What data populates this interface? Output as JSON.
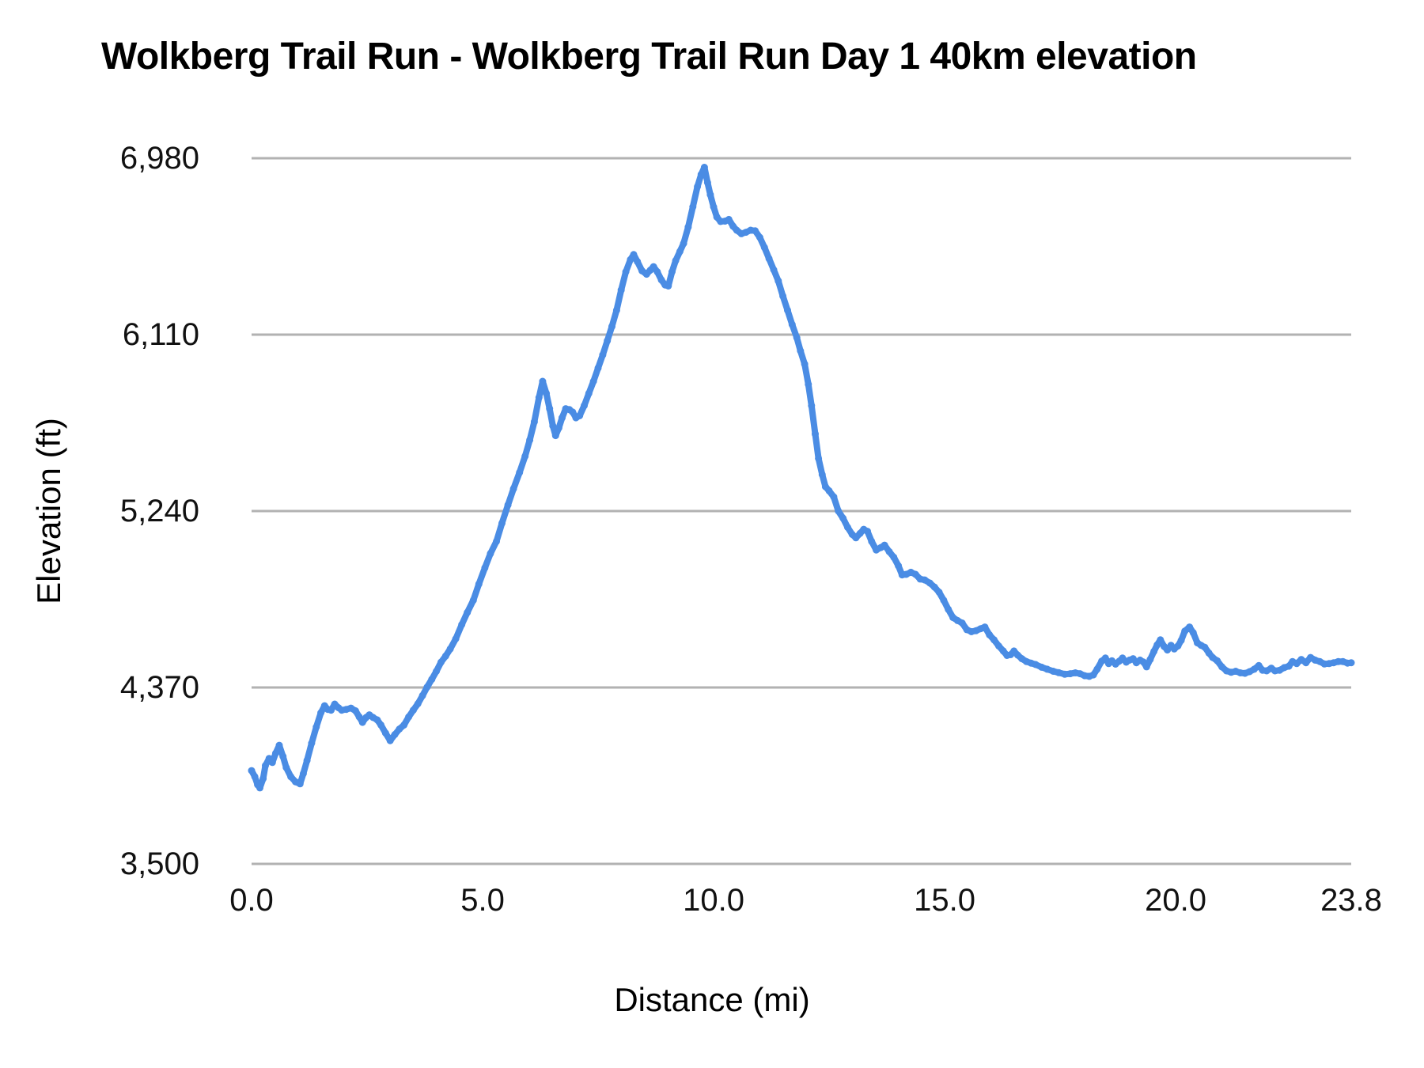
{
  "chart_data": {
    "type": "line",
    "title": "Wolkberg Trail Run - Wolkberg Trail Run Day 1 40km elevation",
    "xlabel": "Distance (mi)",
    "ylabel": "Elevation (ft)",
    "xlim": [
      0,
      23.8
    ],
    "ylim": [
      3500,
      6980
    ],
    "grid": "horizontal",
    "legend": "none",
    "line_color": "#4a8ce4",
    "gridline_color": "#b2b2b2",
    "background_color": "#ffffff",
    "x_ticks": [
      {
        "v": 0,
        "label": "0.0"
      },
      {
        "v": 5,
        "label": "5.0"
      },
      {
        "v": 10,
        "label": "10.0"
      },
      {
        "v": 15,
        "label": "15.0"
      },
      {
        "v": 20,
        "label": "20.0"
      },
      {
        "v": 23.8,
        "label": "23.8"
      }
    ],
    "y_ticks": [
      {
        "v": 3500,
        "label": "3,500"
      },
      {
        "v": 4370,
        "label": "4,370"
      },
      {
        "v": 5240,
        "label": "5,240"
      },
      {
        "v": 6110,
        "label": "6,110"
      },
      {
        "v": 6980,
        "label": "6,980"
      }
    ],
    "series": [
      {
        "name": "elevation",
        "points": [
          [
            0,
            3960
          ],
          [
            0.07,
            3930
          ],
          [
            0.13,
            3890
          ],
          [
            0.18,
            3875
          ],
          [
            0.25,
            3920
          ],
          [
            0.3,
            3985
          ],
          [
            0.38,
            4020
          ],
          [
            0.45,
            4000
          ],
          [
            0.52,
            4045
          ],
          [
            0.6,
            4085
          ],
          [
            0.68,
            4030
          ],
          [
            0.75,
            3975
          ],
          [
            0.85,
            3930
          ],
          [
            0.95,
            3905
          ],
          [
            1.05,
            3895
          ],
          [
            1.12,
            3945
          ],
          [
            1.2,
            4010
          ],
          [
            1.3,
            4095
          ],
          [
            1.4,
            4175
          ],
          [
            1.5,
            4245
          ],
          [
            1.58,
            4280
          ],
          [
            1.65,
            4262
          ],
          [
            1.72,
            4258
          ],
          [
            1.8,
            4288
          ],
          [
            1.88,
            4270
          ],
          [
            1.95,
            4258
          ],
          [
            2.05,
            4262
          ],
          [
            2.15,
            4268
          ],
          [
            2.25,
            4255
          ],
          [
            2.33,
            4225
          ],
          [
            2.4,
            4198
          ],
          [
            2.48,
            4222
          ],
          [
            2.55,
            4235
          ],
          [
            2.63,
            4222
          ],
          [
            2.72,
            4210
          ],
          [
            2.8,
            4185
          ],
          [
            2.9,
            4145
          ],
          [
            3.0,
            4108
          ],
          [
            3.1,
            4138
          ],
          [
            3.2,
            4165
          ],
          [
            3.3,
            4185
          ],
          [
            3.4,
            4225
          ],
          [
            3.5,
            4258
          ],
          [
            3.6,
            4290
          ],
          [
            3.7,
            4330
          ],
          [
            3.8,
            4372
          ],
          [
            3.9,
            4410
          ],
          [
            4.0,
            4450
          ],
          [
            4.1,
            4495
          ],
          [
            4.2,
            4525
          ],
          [
            4.3,
            4560
          ],
          [
            4.42,
            4610
          ],
          [
            4.55,
            4680
          ],
          [
            4.67,
            4740
          ],
          [
            4.8,
            4800
          ],
          [
            4.92,
            4880
          ],
          [
            5.05,
            4960
          ],
          [
            5.17,
            5030
          ],
          [
            5.3,
            5090
          ],
          [
            5.42,
            5180
          ],
          [
            5.55,
            5270
          ],
          [
            5.67,
            5350
          ],
          [
            5.8,
            5430
          ],
          [
            5.92,
            5510
          ],
          [
            6.02,
            5590
          ],
          [
            6.12,
            5680
          ],
          [
            6.22,
            5800
          ],
          [
            6.3,
            5880
          ],
          [
            6.38,
            5820
          ],
          [
            6.45,
            5745
          ],
          [
            6.52,
            5660
          ],
          [
            6.58,
            5612
          ],
          [
            6.65,
            5650
          ],
          [
            6.72,
            5700
          ],
          [
            6.8,
            5745
          ],
          [
            6.88,
            5740
          ],
          [
            6.95,
            5728
          ],
          [
            7.02,
            5700
          ],
          [
            7.1,
            5710
          ],
          [
            7.2,
            5760
          ],
          [
            7.3,
            5820
          ],
          [
            7.4,
            5880
          ],
          [
            7.5,
            5945
          ],
          [
            7.6,
            6010
          ],
          [
            7.7,
            6080
          ],
          [
            7.8,
            6150
          ],
          [
            7.9,
            6230
          ],
          [
            8.0,
            6330
          ],
          [
            8.1,
            6420
          ],
          [
            8.2,
            6480
          ],
          [
            8.27,
            6505
          ],
          [
            8.35,
            6470
          ],
          [
            8.45,
            6425
          ],
          [
            8.55,
            6408
          ],
          [
            8.63,
            6428
          ],
          [
            8.7,
            6445
          ],
          [
            8.78,
            6420
          ],
          [
            8.87,
            6380
          ],
          [
            8.95,
            6355
          ],
          [
            9.02,
            6350
          ],
          [
            9.1,
            6420
          ],
          [
            9.18,
            6475
          ],
          [
            9.27,
            6520
          ],
          [
            9.35,
            6560
          ],
          [
            9.45,
            6640
          ],
          [
            9.55,
            6740
          ],
          [
            9.65,
            6840
          ],
          [
            9.73,
            6900
          ],
          [
            9.8,
            6935
          ],
          [
            9.87,
            6860
          ],
          [
            9.93,
            6800
          ],
          [
            10.0,
            6740
          ],
          [
            10.07,
            6690
          ],
          [
            10.15,
            6668
          ],
          [
            10.25,
            6670
          ],
          [
            10.33,
            6678
          ],
          [
            10.42,
            6645
          ],
          [
            10.5,
            6625
          ],
          [
            10.6,
            6608
          ],
          [
            10.7,
            6615
          ],
          [
            10.8,
            6625
          ],
          [
            10.9,
            6622
          ],
          [
            11.0,
            6590
          ],
          [
            11.1,
            6540
          ],
          [
            11.2,
            6485
          ],
          [
            11.3,
            6430
          ],
          [
            11.4,
            6375
          ],
          [
            11.5,
            6300
          ],
          [
            11.6,
            6230
          ],
          [
            11.7,
            6160
          ],
          [
            11.8,
            6095
          ],
          [
            11.88,
            6030
          ],
          [
            11.97,
            5965
          ],
          [
            12.05,
            5865
          ],
          [
            12.12,
            5760
          ],
          [
            12.2,
            5620
          ],
          [
            12.27,
            5500
          ],
          [
            12.35,
            5420
          ],
          [
            12.42,
            5360
          ],
          [
            12.5,
            5340
          ],
          [
            12.6,
            5310
          ],
          [
            12.7,
            5240
          ],
          [
            12.8,
            5205
          ],
          [
            12.9,
            5160
          ],
          [
            13.0,
            5125
          ],
          [
            13.08,
            5108
          ],
          [
            13.17,
            5130
          ],
          [
            13.25,
            5150
          ],
          [
            13.33,
            5140
          ],
          [
            13.42,
            5090
          ],
          [
            13.52,
            5048
          ],
          [
            13.62,
            5060
          ],
          [
            13.7,
            5072
          ],
          [
            13.8,
            5040
          ],
          [
            13.9,
            5012
          ],
          [
            14.0,
            4970
          ],
          [
            14.08,
            4925
          ],
          [
            14.17,
            4928
          ],
          [
            14.27,
            4938
          ],
          [
            14.37,
            4928
          ],
          [
            14.47,
            4905
          ],
          [
            14.57,
            4900
          ],
          [
            14.68,
            4885
          ],
          [
            14.78,
            4865
          ],
          [
            14.88,
            4840
          ],
          [
            14.98,
            4800
          ],
          [
            15.08,
            4755
          ],
          [
            15.18,
            4715
          ],
          [
            15.28,
            4700
          ],
          [
            15.38,
            4688
          ],
          [
            15.48,
            4655
          ],
          [
            15.58,
            4645
          ],
          [
            15.68,
            4650
          ],
          [
            15.78,
            4660
          ],
          [
            15.87,
            4668
          ],
          [
            15.97,
            4630
          ],
          [
            16.07,
            4605
          ],
          [
            16.17,
            4575
          ],
          [
            16.27,
            4550
          ],
          [
            16.35,
            4528
          ],
          [
            16.43,
            4532
          ],
          [
            16.5,
            4550
          ],
          [
            16.58,
            4530
          ],
          [
            16.67,
            4512
          ],
          [
            16.77,
            4498
          ],
          [
            16.87,
            4490
          ],
          [
            16.97,
            4483
          ],
          [
            17.1,
            4470
          ],
          [
            17.22,
            4460
          ],
          [
            17.35,
            4450
          ],
          [
            17.47,
            4443
          ],
          [
            17.6,
            4435
          ],
          [
            17.72,
            4438
          ],
          [
            17.83,
            4442
          ],
          [
            17.93,
            4438
          ],
          [
            18.03,
            4428
          ],
          [
            18.13,
            4425
          ],
          [
            18.22,
            4432
          ],
          [
            18.3,
            4460
          ],
          [
            18.4,
            4500
          ],
          [
            18.48,
            4515
          ],
          [
            18.55,
            4488
          ],
          [
            18.62,
            4502
          ],
          [
            18.7,
            4485
          ],
          [
            18.78,
            4500
          ],
          [
            18.85,
            4515
          ],
          [
            18.93,
            4495
          ],
          [
            19.0,
            4505
          ],
          [
            19.08,
            4512
          ],
          [
            19.15,
            4492
          ],
          [
            19.23,
            4505
          ],
          [
            19.3,
            4496
          ],
          [
            19.37,
            4472
          ],
          [
            19.45,
            4508
          ],
          [
            19.53,
            4548
          ],
          [
            19.6,
            4580
          ],
          [
            19.67,
            4605
          ],
          [
            19.75,
            4572
          ],
          [
            19.82,
            4555
          ],
          [
            19.9,
            4578
          ],
          [
            19.97,
            4560
          ],
          [
            20.05,
            4575
          ],
          [
            20.12,
            4602
          ],
          [
            20.2,
            4648
          ],
          [
            20.3,
            4668
          ],
          [
            20.38,
            4640
          ],
          [
            20.47,
            4590
          ],
          [
            20.55,
            4578
          ],
          [
            20.63,
            4568
          ],
          [
            20.72,
            4540
          ],
          [
            20.8,
            4518
          ],
          [
            20.9,
            4502
          ],
          [
            21.0,
            4472
          ],
          [
            21.1,
            4452
          ],
          [
            21.2,
            4445
          ],
          [
            21.3,
            4450
          ],
          [
            21.4,
            4442
          ],
          [
            21.5,
            4440
          ],
          [
            21.6,
            4448
          ],
          [
            21.7,
            4460
          ],
          [
            21.8,
            4478
          ],
          [
            21.88,
            4455
          ],
          [
            21.97,
            4452
          ],
          [
            22.07,
            4465
          ],
          [
            22.15,
            4452
          ],
          [
            22.25,
            4455
          ],
          [
            22.35,
            4468
          ],
          [
            22.45,
            4475
          ],
          [
            22.53,
            4498
          ],
          [
            22.62,
            4488
          ],
          [
            22.72,
            4508
          ],
          [
            22.82,
            4492
          ],
          [
            22.92,
            4518
          ],
          [
            23.02,
            4505
          ],
          [
            23.12,
            4498
          ],
          [
            23.22,
            4486
          ],
          [
            23.32,
            4488
          ],
          [
            23.42,
            4492
          ],
          [
            23.52,
            4498
          ],
          [
            23.62,
            4498
          ],
          [
            23.72,
            4490
          ],
          [
            23.8,
            4492
          ]
        ]
      }
    ]
  }
}
